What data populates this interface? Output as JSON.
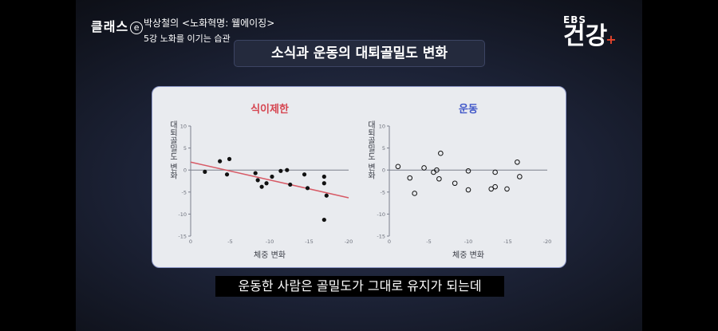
{
  "program": {
    "logo": "클래스",
    "logo_e": "e",
    "title": "박상철의 <노화혁명: 웰에이징>",
    "subtitle": "5강 노화를 이기는 습관"
  },
  "channel": {
    "top": "EBS",
    "main": "건강",
    "plus": "+"
  },
  "slide_title": "소식과 운동의 대퇴골밀도 변화",
  "caption": "운동한 사람은 골밀도가 그대로 유지가 되는데",
  "colors": {
    "restriction": "#d64550",
    "exercise": "#3f56c8",
    "trend": "#d75a66"
  },
  "chart_data": [
    {
      "type": "scatter",
      "title": "식이제한",
      "xlabel": "체중 변화",
      "ylabel": "대퇴골밀도 변화",
      "xlim": [
        0,
        -20
      ],
      "ylim": [
        -15,
        10
      ],
      "xticks": [
        "0",
        "-5",
        "-10",
        "-15",
        "-20"
      ],
      "yticks": [
        "10",
        "5",
        "0",
        "-5",
        "-10",
        "-15"
      ],
      "marker": "filled",
      "points": [
        {
          "x": -1.8,
          "y": -0.4
        },
        {
          "x": -3.7,
          "y": 2.0
        },
        {
          "x": -4.6,
          "y": -1.0
        },
        {
          "x": -4.9,
          "y": 2.5
        },
        {
          "x": -8.2,
          "y": -0.7
        },
        {
          "x": -8.5,
          "y": -2.3
        },
        {
          "x": -9.0,
          "y": -3.8
        },
        {
          "x": -9.6,
          "y": -3.0
        },
        {
          "x": -10.3,
          "y": -1.5
        },
        {
          "x": -11.4,
          "y": -0.2
        },
        {
          "x": -12.2,
          "y": 0.0
        },
        {
          "x": -12.6,
          "y": -3.3
        },
        {
          "x": -14.4,
          "y": -1.0
        },
        {
          "x": -14.8,
          "y": -4.1
        },
        {
          "x": -16.9,
          "y": -1.5
        },
        {
          "x": -16.9,
          "y": -3.0
        },
        {
          "x": -17.2,
          "y": -5.8
        },
        {
          "x": -16.9,
          "y": -11.3
        }
      ],
      "trendline": [
        {
          "x": 0,
          "y": 1.8
        },
        {
          "x": -20,
          "y": -6.3
        }
      ]
    },
    {
      "type": "scatter",
      "title": "운동",
      "xlabel": "체중 변화",
      "ylabel": "대퇴골밀도 변화",
      "xlim": [
        0,
        -20
      ],
      "ylim": [
        -15,
        10
      ],
      "xticks": [
        "0",
        "-5",
        "-10",
        "-15",
        "-20"
      ],
      "yticks": [
        "10",
        "5",
        "0",
        "-5",
        "-10",
        "-15"
      ],
      "marker": "hollow",
      "points": [
        {
          "x": -1.1,
          "y": 0.8
        },
        {
          "x": -2.6,
          "y": -1.8
        },
        {
          "x": -3.2,
          "y": -5.3
        },
        {
          "x": -4.4,
          "y": 0.5
        },
        {
          "x": -5.6,
          "y": -0.5
        },
        {
          "x": -6.0,
          "y": 0.0
        },
        {
          "x": -6.3,
          "y": -2.0
        },
        {
          "x": -6.5,
          "y": 3.8
        },
        {
          "x": -8.3,
          "y": -3.0
        },
        {
          "x": -10.0,
          "y": -0.2
        },
        {
          "x": -10.0,
          "y": -4.5
        },
        {
          "x": -12.9,
          "y": -4.3
        },
        {
          "x": -13.4,
          "y": -0.5
        },
        {
          "x": -13.4,
          "y": -3.8
        },
        {
          "x": -14.9,
          "y": -4.3
        },
        {
          "x": -16.2,
          "y": 1.8
        },
        {
          "x": -16.5,
          "y": -1.5
        }
      ]
    }
  ]
}
